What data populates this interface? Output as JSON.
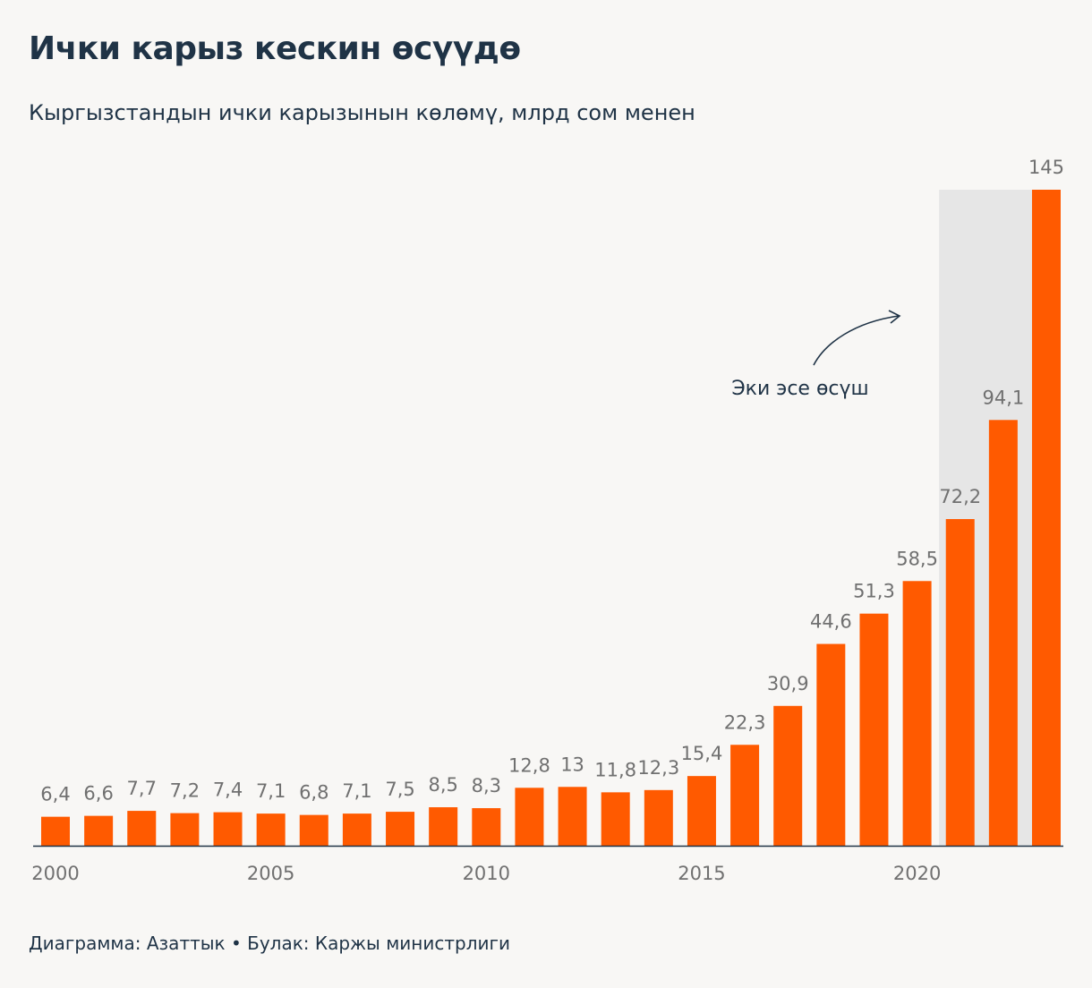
{
  "title": "Ички карыз кескин өсүүдө",
  "subtitle": "Кыргызстандын ички карызынын көлөмү, млрд сом менен",
  "footer": "Диаграмма: Азаттык • Булак: Каржы министрлиги",
  "colors": {
    "bar": "#ff5a00",
    "highlight": "#e6e6e6",
    "axis": "#1f3346",
    "label": "#707070",
    "text": "#1f3346"
  },
  "chart_data": {
    "type": "bar",
    "title": "Ички карыз кескин өсүүдө",
    "subtitle": "Кыргызстандын ички карызынын көлөмү, млрд сом менен",
    "xlabel": "",
    "ylabel": "",
    "categories": [
      2000,
      2001,
      2002,
      2003,
      2004,
      2005,
      2006,
      2007,
      2008,
      2009,
      2010,
      2011,
      2012,
      2013,
      2014,
      2015,
      2016,
      2017,
      2018,
      2019,
      2020,
      2021,
      2022,
      2023
    ],
    "values": [
      6.4,
      6.6,
      7.7,
      7.2,
      7.4,
      7.1,
      6.8,
      7.1,
      7.5,
      8.5,
      8.3,
      12.8,
      13,
      11.8,
      12.3,
      15.4,
      22.3,
      30.9,
      44.6,
      51.3,
      58.5,
      72.2,
      94.1,
      145
    ],
    "value_labels": [
      "6,4",
      "6,6",
      "7,7",
      "7,2",
      "7,4",
      "7,1",
      "6,8",
      "7,1",
      "7,5",
      "8,5",
      "8,3",
      "12,8",
      "13",
      "11,8",
      "12,3",
      "15,4",
      "22,3",
      "30,9",
      "44,6",
      "51,3",
      "58,5",
      "72,2",
      "94,1",
      "145"
    ],
    "x_ticks": [
      2000,
      2005,
      2010,
      2015,
      2020
    ],
    "x_tick_labels": [
      "2000",
      "2005",
      "2010",
      "2015",
      "2020"
    ],
    "ylim": [
      0,
      145
    ],
    "grid": false,
    "highlight": {
      "from_year": 2021,
      "to_year": 2023,
      "annotation": "Эки эсе өсүш"
    }
  }
}
